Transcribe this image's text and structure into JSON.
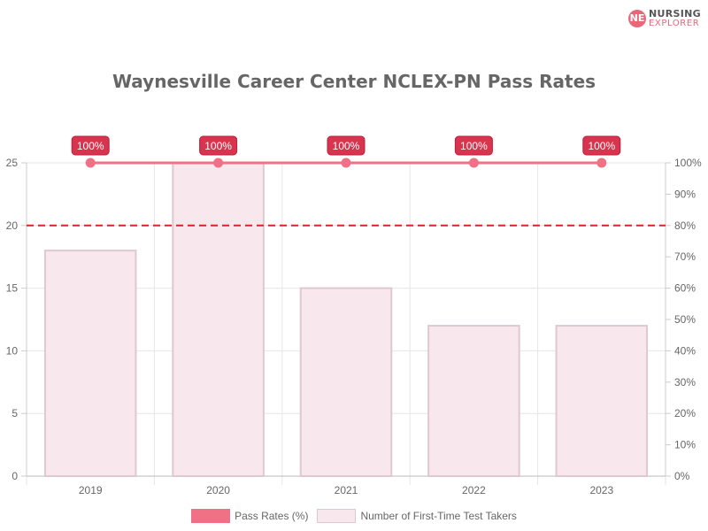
{
  "logo": {
    "mark": "NE",
    "line1": "NURSING",
    "line2": "EXPLORER"
  },
  "chart_data": {
    "type": "bar",
    "title": "Waynesville Career Center NCLEX-PN Pass Rates",
    "categories": [
      "2019",
      "2020",
      "2021",
      "2022",
      "2023"
    ],
    "series": [
      {
        "name": "Pass Rates (%)",
        "type": "line",
        "axis": "right",
        "values": [
          100,
          100,
          100,
          100,
          100
        ],
        "labels": [
          "100%",
          "100%",
          "100%",
          "100%",
          "100%"
        ]
      },
      {
        "name": "Number of First-Time Test Takers",
        "type": "bar",
        "axis": "left",
        "values": [
          18,
          25,
          15,
          12,
          12
        ]
      }
    ],
    "left_axis": {
      "min": 0,
      "max": 25,
      "ticks": [
        "0",
        "5",
        "10",
        "15",
        "20",
        "25"
      ]
    },
    "right_axis": {
      "min": 0,
      "max": 100,
      "ticks": [
        "0%",
        "10%",
        "20%",
        "30%",
        "40%",
        "50%",
        "60%",
        "70%",
        "80%",
        "90%",
        "100%"
      ]
    },
    "reference_line": {
      "axis": "right",
      "value": 80,
      "style": "dashed",
      "color": "#dd2222"
    },
    "grid": true,
    "legend_position": "bottom",
    "colors": {
      "line": "#f07085",
      "label_bg": "#d8344e",
      "bar_fill": "#f8e8ee",
      "bar_stroke": "#e0c8d0"
    }
  }
}
